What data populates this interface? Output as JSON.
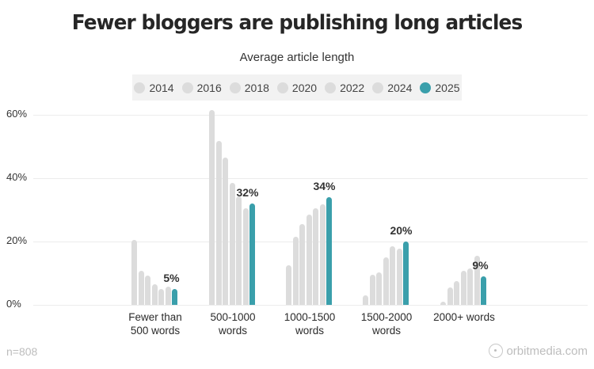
{
  "header": {
    "title": "Fewer bloggers are publishing long articles",
    "subtitle": "Average article length"
  },
  "legend": {
    "items": [
      {
        "label": "2014",
        "color": "#dcdcdc"
      },
      {
        "label": "2016",
        "color": "#dcdcdc"
      },
      {
        "label": "2018",
        "color": "#dcdcdc"
      },
      {
        "label": "2020",
        "color": "#dcdcdc"
      },
      {
        "label": "2022",
        "color": "#dcdcdc"
      },
      {
        "label": "2024",
        "color": "#dcdcdc"
      },
      {
        "label": "2025",
        "color": "#3a9fab"
      }
    ]
  },
  "axis": {
    "yticks": [
      "60%",
      "40%",
      "20%",
      "0%"
    ]
  },
  "footer": {
    "sample_size": "n=808",
    "brand": "orbitmedia.com"
  },
  "colors": {
    "highlight": "#3a9fab",
    "muted": "#dcdcdc"
  },
  "chart_data": {
    "type": "bar",
    "title": "Fewer bloggers are publishing long articles",
    "subtitle": "Average article length",
    "xlabel": "",
    "ylabel": "",
    "ylim": [
      0,
      60
    ],
    "yticks": [
      0,
      20,
      40,
      60
    ],
    "grid": true,
    "legend_position": "top",
    "categories": [
      "Fewer than 500 words",
      "500-1000 words",
      "1000-1500 words",
      "1500-2000 words",
      "2000+ words"
    ],
    "category_lines": [
      [
        "Fewer than",
        "500 words"
      ],
      [
        "500-1000",
        "words"
      ],
      [
        "1000-1500",
        "words"
      ],
      [
        "1500-2000",
        "words"
      ],
      [
        "2000+ words"
      ]
    ],
    "series": [
      {
        "name": "2014",
        "values": [
          20.5,
          61.5,
          12.5,
          3.0,
          1.0
        ]
      },
      {
        "name": "2016",
        "values": [
          10.7,
          51.7,
          21.5,
          9.5,
          5.5
        ]
      },
      {
        "name": "2018",
        "values": [
          9.2,
          46.5,
          25.5,
          10.2,
          7.5
        ]
      },
      {
        "name": "2020",
        "values": [
          6.5,
          38.5,
          28.5,
          15.0,
          10.7
        ]
      },
      {
        "name": "2022",
        "values": [
          5.0,
          34.2,
          30.5,
          18.5,
          11.5
        ]
      },
      {
        "name": "2024",
        "values": [
          5.7,
          30.5,
          31.8,
          17.7,
          15.5
        ]
      },
      {
        "name": "2025",
        "values": [
          5,
          32,
          34,
          20,
          9
        ]
      }
    ],
    "data_labels": [
      "5%",
      "32%",
      "34%",
      "20%",
      "9%"
    ],
    "annotations": [
      "n=808",
      "orbitmedia.com"
    ]
  }
}
